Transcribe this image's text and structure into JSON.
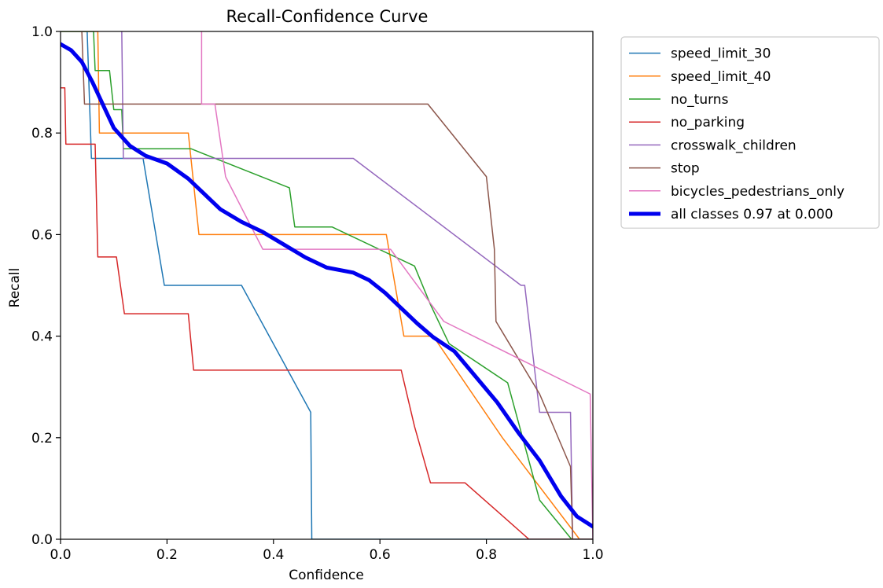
{
  "chart_data": {
    "type": "line",
    "title": "Recall-Confidence Curve",
    "xlabel": "Confidence",
    "ylabel": "Recall",
    "xlim": [
      0.0,
      1.0
    ],
    "ylim": [
      0.0,
      1.0
    ],
    "xticks": [
      "0.0",
      "0.2",
      "0.4",
      "0.6",
      "0.8",
      "1.0"
    ],
    "yticks": [
      "0.0",
      "0.2",
      "0.4",
      "0.6",
      "0.8",
      "1.0"
    ],
    "legend_position": "outside-top-right",
    "series": [
      {
        "name": "speed_limit_30",
        "color": "#1f77b4",
        "points": [
          [
            0.0,
            1.0
          ],
          [
            0.05,
            1.0
          ],
          [
            0.058,
            0.75
          ],
          [
            0.155,
            0.75
          ],
          [
            0.195,
            0.5
          ],
          [
            0.34,
            0.5
          ],
          [
            0.47,
            0.25
          ],
          [
            0.472,
            0.0
          ],
          [
            1.0,
            0.0
          ]
        ]
      },
      {
        "name": "speed_limit_40",
        "color": "#ff7f0e",
        "points": [
          [
            0.0,
            1.0
          ],
          [
            0.07,
            1.0
          ],
          [
            0.073,
            0.8
          ],
          [
            0.24,
            0.8
          ],
          [
            0.26,
            0.6
          ],
          [
            0.612,
            0.6
          ],
          [
            0.645,
            0.4
          ],
          [
            0.7,
            0.4
          ],
          [
            0.83,
            0.2
          ],
          [
            0.975,
            0.0
          ],
          [
            1.0,
            0.0
          ]
        ]
      },
      {
        "name": "no_turns",
        "color": "#2ca02c",
        "points": [
          [
            0.0,
            1.0
          ],
          [
            0.062,
            1.0
          ],
          [
            0.065,
            0.923
          ],
          [
            0.092,
            0.923
          ],
          [
            0.1,
            0.846
          ],
          [
            0.115,
            0.846
          ],
          [
            0.118,
            0.769
          ],
          [
            0.245,
            0.769
          ],
          [
            0.43,
            0.692
          ],
          [
            0.44,
            0.615
          ],
          [
            0.51,
            0.615
          ],
          [
            0.665,
            0.538
          ],
          [
            0.695,
            0.462
          ],
          [
            0.73,
            0.385
          ],
          [
            0.84,
            0.308
          ],
          [
            0.9,
            0.077
          ],
          [
            0.96,
            0.0
          ],
          [
            1.0,
            0.0
          ]
        ]
      },
      {
        "name": "no_parking",
        "color": "#d62728",
        "points": [
          [
            0.0,
            0.889
          ],
          [
            0.008,
            0.889
          ],
          [
            0.01,
            0.778
          ],
          [
            0.065,
            0.778
          ],
          [
            0.07,
            0.556
          ],
          [
            0.105,
            0.556
          ],
          [
            0.12,
            0.444
          ],
          [
            0.24,
            0.444
          ],
          [
            0.25,
            0.333
          ],
          [
            0.64,
            0.333
          ],
          [
            0.665,
            0.222
          ],
          [
            0.695,
            0.111
          ],
          [
            0.76,
            0.111
          ],
          [
            0.88,
            0.0
          ],
          [
            1.0,
            0.0
          ]
        ]
      },
      {
        "name": "crosswalk_children",
        "color": "#9467bd",
        "points": [
          [
            0.115,
            1.0
          ],
          [
            0.118,
            0.75
          ],
          [
            0.55,
            0.75
          ],
          [
            0.865,
            0.5
          ],
          [
            0.872,
            0.5
          ],
          [
            0.9,
            0.25
          ],
          [
            0.958,
            0.25
          ],
          [
            0.962,
            0.0
          ],
          [
            1.0,
            0.0
          ]
        ]
      },
      {
        "name": "stop",
        "color": "#8c564b",
        "points": [
          [
            0.04,
            1.0
          ],
          [
            0.045,
            0.857
          ],
          [
            0.69,
            0.857
          ],
          [
            0.8,
            0.714
          ],
          [
            0.815,
            0.571
          ],
          [
            0.818,
            0.429
          ],
          [
            0.9,
            0.286
          ],
          [
            0.958,
            0.143
          ],
          [
            0.962,
            0.0
          ],
          [
            1.0,
            0.0
          ]
        ]
      },
      {
        "name": "bicycles_pedestrians_only",
        "color": "#e377c2",
        "points": [
          [
            0.265,
            1.0
          ],
          [
            0.265,
            0.857
          ],
          [
            0.29,
            0.857
          ],
          [
            0.31,
            0.714
          ],
          [
            0.38,
            0.571
          ],
          [
            0.62,
            0.571
          ],
          [
            0.72,
            0.429
          ],
          [
            0.995,
            0.286
          ],
          [
            1.0,
            0.0
          ]
        ]
      },
      {
        "name": "all classes 0.97 at 0.000",
        "color": "#0000ee",
        "bold": true,
        "points": [
          [
            0.0,
            0.975
          ],
          [
            0.02,
            0.963
          ],
          [
            0.04,
            0.94
          ],
          [
            0.06,
            0.9
          ],
          [
            0.08,
            0.855
          ],
          [
            0.1,
            0.81
          ],
          [
            0.13,
            0.775
          ],
          [
            0.16,
            0.755
          ],
          [
            0.2,
            0.74
          ],
          [
            0.24,
            0.71
          ],
          [
            0.27,
            0.68
          ],
          [
            0.3,
            0.65
          ],
          [
            0.34,
            0.625
          ],
          [
            0.38,
            0.605
          ],
          [
            0.42,
            0.58
          ],
          [
            0.46,
            0.555
          ],
          [
            0.5,
            0.535
          ],
          [
            0.55,
            0.525
          ],
          [
            0.58,
            0.51
          ],
          [
            0.61,
            0.485
          ],
          [
            0.64,
            0.455
          ],
          [
            0.67,
            0.425
          ],
          [
            0.7,
            0.398
          ],
          [
            0.74,
            0.37
          ],
          [
            0.78,
            0.32
          ],
          [
            0.82,
            0.27
          ],
          [
            0.86,
            0.21
          ],
          [
            0.9,
            0.155
          ],
          [
            0.94,
            0.085
          ],
          [
            0.97,
            0.045
          ],
          [
            1.0,
            0.025
          ]
        ]
      }
    ]
  }
}
